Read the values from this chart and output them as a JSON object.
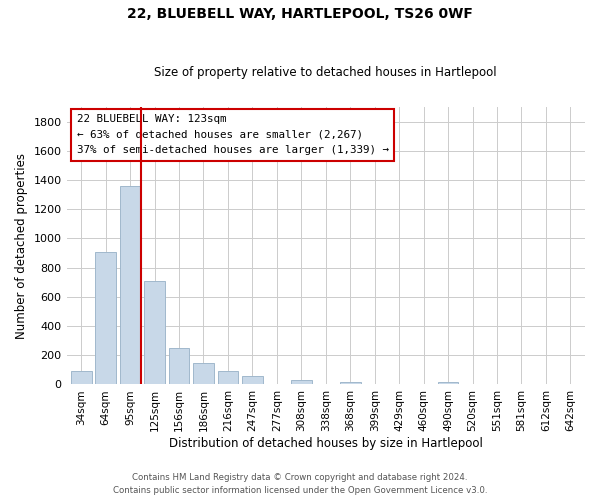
{
  "title": "22, BLUEBELL WAY, HARTLEPOOL, TS26 0WF",
  "subtitle": "Size of property relative to detached houses in Hartlepool",
  "xlabel": "Distribution of detached houses by size in Hartlepool",
  "ylabel": "Number of detached properties",
  "bar_labels": [
    "34sqm",
    "64sqm",
    "95sqm",
    "125sqm",
    "156sqm",
    "186sqm",
    "216sqm",
    "247sqm",
    "277sqm",
    "308sqm",
    "338sqm",
    "368sqm",
    "399sqm",
    "429sqm",
    "460sqm",
    "490sqm",
    "520sqm",
    "551sqm",
    "581sqm",
    "612sqm",
    "642sqm"
  ],
  "bar_values": [
    90,
    910,
    1360,
    710,
    250,
    145,
    90,
    55,
    0,
    30,
    0,
    15,
    0,
    0,
    0,
    15,
    0,
    0,
    0,
    0,
    0
  ],
  "bar_color": "#c8d8e8",
  "bar_edge_color": "#a0b8cc",
  "vline_bar_index": 2,
  "vline_color": "#cc0000",
  "annotation_title": "22 BLUEBELL WAY: 123sqm",
  "annotation_line1": "← 63% of detached houses are smaller (2,267)",
  "annotation_line2": "37% of semi-detached houses are larger (1,339) →",
  "annotation_box_color": "#ffffff",
  "annotation_box_edge": "#cc0000",
  "ylim": [
    0,
    1900
  ],
  "yticks": [
    0,
    200,
    400,
    600,
    800,
    1000,
    1200,
    1400,
    1600,
    1800
  ],
  "footer1": "Contains HM Land Registry data © Crown copyright and database right 2024.",
  "footer2": "Contains public sector information licensed under the Open Government Licence v3.0."
}
